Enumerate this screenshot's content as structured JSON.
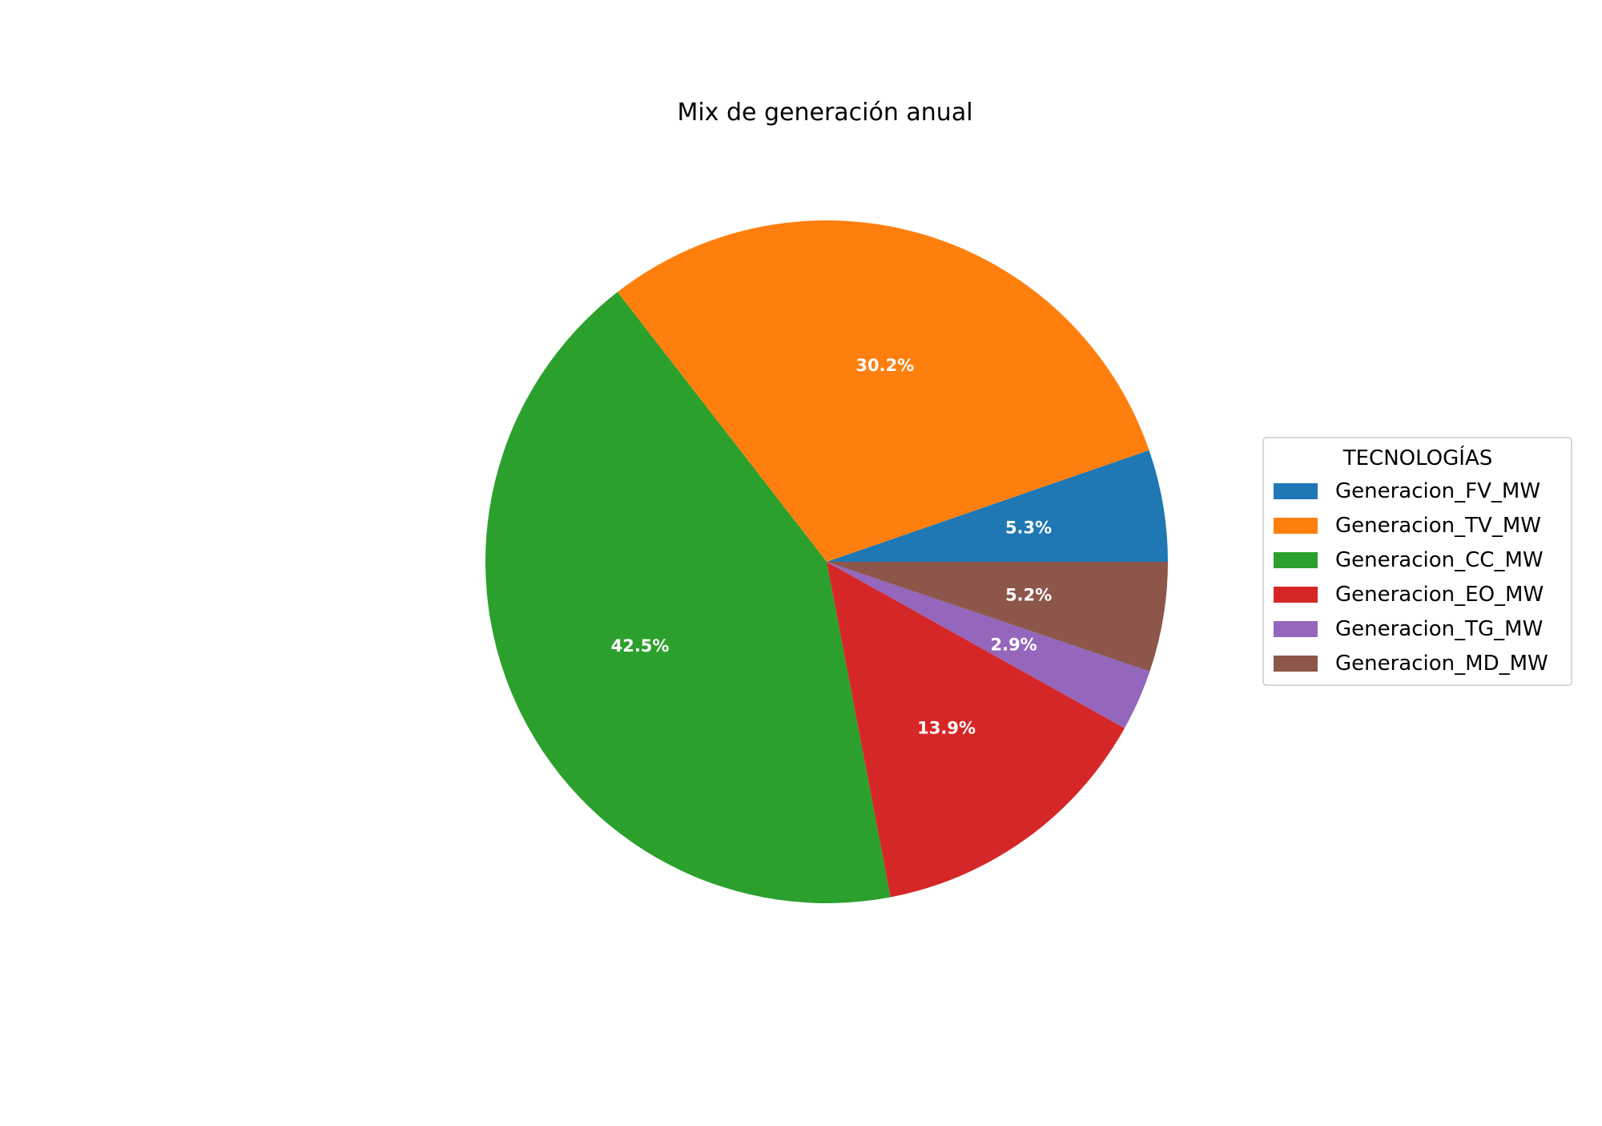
{
  "chart_data": {
    "type": "pie",
    "title": "Mix de generación anual",
    "legend_title": "TECNOLOGÍAS",
    "legend_position": "right",
    "start_angle_deg": 0,
    "direction": "counterclockwise",
    "slices": [
      {
        "label": "Generacion_FV_MW",
        "value": 5.3,
        "pct_label": "5.3%",
        "color": "#1f77b4"
      },
      {
        "label": "Generacion_TV_MW",
        "value": 30.2,
        "pct_label": "30.2%",
        "color": "#ff7f0e"
      },
      {
        "label": "Generacion_CC_MW",
        "value": 42.5,
        "pct_label": "42.5%",
        "color": "#2ca02c"
      },
      {
        "label": "Generacion_EO_MW",
        "value": 13.9,
        "pct_label": "13.9%",
        "color": "#d62728"
      },
      {
        "label": "Generacion_TG_MW",
        "value": 2.9,
        "pct_label": "2.9%",
        "color": "#9467bd"
      },
      {
        "label": "Generacion_MD_MW",
        "value": 5.2,
        "pct_label": "5.2%",
        "color": "#8c564b"
      }
    ]
  }
}
